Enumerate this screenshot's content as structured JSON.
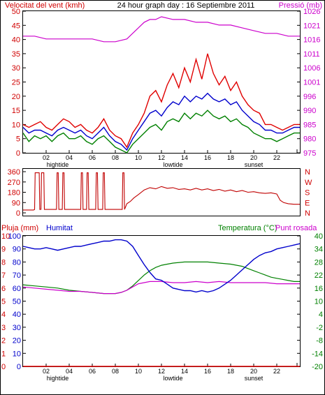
{
  "header": {
    "wind_label": "Velocitat del vent (kmh)",
    "center_title": "24 hour graph day : 16 Septiembre 2011",
    "pressure_label": "Pressió (mb)"
  },
  "colors": {
    "wind_gust": "#e00000",
    "wind_avg": "#0000cc",
    "wind_low": "#008000",
    "pressure": "#cc00cc",
    "direction": "#c00000",
    "humidity": "#0000cc",
    "temperature": "#008000",
    "dewpoint": "#cc00cc",
    "rain": "#e00000",
    "axis_red": "#d00000",
    "axis_magenta": "#cc00cc",
    "axis_green": "#008000"
  },
  "x_axis": {
    "hour_labels": [
      "02",
      "04",
      "06",
      "08",
      "10",
      "12",
      "14",
      "16",
      "18",
      "20",
      "22"
    ],
    "events": [
      {
        "x": 3.0,
        "label": "hightide"
      },
      {
        "x": 13.0,
        "label": "lowtide"
      },
      {
        "x": 20.0,
        "label": "sunset"
      }
    ]
  },
  "chart_data": [
    {
      "type": "line",
      "x_unit": "hour",
      "y_left": {
        "label": "Velocitat del vent (kmh)",
        "ticks": [
          "0",
          "5",
          "10",
          "15",
          "20",
          "25",
          "30",
          "35",
          "40",
          "45",
          "50"
        ],
        "lim": [
          0,
          50
        ]
      },
      "y_right": {
        "label": "Pressió (mb)",
        "ticks": [
          "975",
          "980",
          "985",
          "990",
          "996",
          "1001",
          "1006",
          "1011",
          "1016",
          "1021",
          "1026"
        ],
        "lim": [
          975,
          1026
        ]
      },
      "series": [
        {
          "name": "gust",
          "x": [
            0,
            0.5,
            1,
            1.5,
            2,
            2.5,
            3,
            3.5,
            4,
            4.5,
            5,
            5.5,
            6,
            6.5,
            7,
            7.5,
            8,
            8.5,
            9,
            9.5,
            10,
            10.5,
            11,
            11.5,
            12,
            12.5,
            13,
            13.5,
            14,
            14.5,
            15,
            15.5,
            16,
            16.5,
            17,
            17.5,
            18,
            18.5,
            19,
            19.5,
            20,
            20.5,
            21,
            21.5,
            22,
            22.5,
            23,
            23.5,
            24
          ],
          "y": [
            10,
            9,
            10,
            11,
            9,
            8,
            10,
            12,
            11,
            9,
            10,
            8,
            7,
            9,
            12,
            8,
            6,
            5,
            2,
            7,
            10,
            14,
            20,
            22,
            18,
            24,
            28,
            23,
            30,
            25,
            33,
            26,
            35,
            28,
            24,
            27,
            22,
            25,
            20,
            17,
            15,
            14,
            10,
            10,
            9,
            8,
            9,
            10,
            10
          ]
        },
        {
          "name": "average",
          "x": [
            0,
            0.5,
            1,
            1.5,
            2,
            2.5,
            3,
            3.5,
            4,
            4.5,
            5,
            5.5,
            6,
            6.5,
            7,
            7.5,
            8,
            8.5,
            9,
            9.5,
            10,
            10.5,
            11,
            11.5,
            12,
            12.5,
            13,
            13.5,
            14,
            14.5,
            15,
            15.5,
            16,
            16.5,
            17,
            17.5,
            18,
            18.5,
            19,
            19.5,
            20,
            20.5,
            21,
            21.5,
            22,
            22.5,
            23,
            23.5,
            24
          ],
          "y": [
            9,
            7,
            8,
            8,
            7,
            6,
            8,
            9,
            8,
            7,
            8,
            6,
            5,
            7,
            9,
            6,
            4,
            3,
            1,
            5,
            8,
            11,
            14,
            15,
            13,
            16,
            18,
            17,
            20,
            18,
            20,
            19,
            21,
            19,
            18,
            19,
            17,
            18,
            15,
            13,
            11,
            10,
            8,
            8,
            7,
            7,
            8,
            9,
            9
          ]
        },
        {
          "name": "low",
          "x": [
            0,
            0.5,
            1,
            1.5,
            2,
            2.5,
            3,
            3.5,
            4,
            4.5,
            5,
            5.5,
            6,
            6.5,
            7,
            7.5,
            8,
            8.5,
            9,
            9.5,
            10,
            10.5,
            11,
            11.5,
            12,
            12.5,
            13,
            13.5,
            14,
            14.5,
            15,
            15.5,
            16,
            16.5,
            17,
            17.5,
            18,
            18.5,
            19,
            19.5,
            20,
            20.5,
            21,
            21.5,
            22,
            22.5,
            23,
            23.5,
            24
          ],
          "y": [
            7,
            4,
            6,
            5,
            6,
            4,
            6,
            7,
            5,
            5,
            6,
            4,
            3,
            5,
            6,
            4,
            2,
            1,
            0,
            3,
            5,
            7,
            9,
            10,
            8,
            11,
            12,
            11,
            14,
            12,
            14,
            13,
            15,
            13,
            12,
            13,
            11,
            12,
            10,
            9,
            7,
            6,
            5,
            5,
            4,
            5,
            6,
            7,
            7
          ]
        },
        {
          "name": "pressure",
          "x": [
            0,
            1,
            2,
            3,
            4,
            5,
            6,
            7,
            8,
            9,
            9.5,
            10,
            10.5,
            11,
            11.5,
            12,
            13,
            14,
            15,
            16,
            17,
            18,
            19,
            20,
            21,
            22,
            23,
            24
          ],
          "y": [
            1017,
            1017,
            1016,
            1016,
            1016,
            1016,
            1016,
            1015,
            1015,
            1016,
            1018,
            1020,
            1022,
            1023,
            1023,
            1024,
            1023,
            1023,
            1022,
            1022,
            1021,
            1021,
            1020,
            1019,
            1018,
            1018,
            1017,
            1017
          ]
        }
      ]
    },
    {
      "type": "line",
      "x_unit": "hour",
      "y_left": {
        "ticks": [
          "360",
          "270",
          "180",
          "90",
          "0"
        ],
        "lim": [
          0,
          360
        ]
      },
      "y_right": {
        "ticks": [
          "N",
          "W",
          "S",
          "E",
          "N"
        ]
      },
      "series": [
        {
          "name": "direction",
          "x": [
            0,
            0.9,
            1,
            1.05,
            1.4,
            1.45,
            1.55,
            1.6,
            1.8,
            1.85,
            2.9,
            2.95,
            3.05,
            3.1,
            3.4,
            3.45,
            3.55,
            3.6,
            5.0,
            5.05,
            5.15,
            5.2,
            5.5,
            5.55,
            5.65,
            5.7,
            6.3,
            6.35,
            6.45,
            6.5,
            6.9,
            6.95,
            7.05,
            7.1,
            8.6,
            8.65,
            8.75,
            8.8,
            9.0,
            9.3,
            9.6,
            10,
            10.5,
            11,
            11.5,
            12,
            12.5,
            13,
            13.5,
            14,
            14.5,
            15,
            15.5,
            16,
            16.5,
            17,
            17.5,
            18,
            18.5,
            19,
            19.5,
            20,
            20.5,
            21,
            21.5,
            22,
            22.3,
            22.6,
            23,
            23.5,
            24
          ],
          "y": [
            25,
            25,
            30,
            350,
            350,
            30,
            30,
            350,
            350,
            30,
            30,
            350,
            350,
            30,
            30,
            350,
            350,
            30,
            30,
            350,
            350,
            30,
            30,
            350,
            350,
            30,
            30,
            350,
            350,
            30,
            30,
            350,
            350,
            30,
            30,
            350,
            350,
            30,
            80,
            100,
            130,
            160,
            200,
            220,
            210,
            230,
            215,
            220,
            205,
            210,
            200,
            215,
            200,
            210,
            195,
            205,
            190,
            200,
            185,
            195,
            180,
            185,
            175,
            170,
            175,
            165,
            110,
            90,
            80,
            75,
            75
          ]
        }
      ]
    },
    {
      "type": "line",
      "x_unit": "hour",
      "y_left_rain": {
        "label": "Pluja (mm)",
        "ticks": [
          "0",
          "1",
          "2",
          "3",
          "4",
          "5",
          "6",
          "7",
          "8",
          "9",
          "10"
        ],
        "lim": [
          0,
          10
        ]
      },
      "y_left_humidity": {
        "label": "Humitat",
        "ticks": [
          "0",
          "10",
          "20",
          "30",
          "40",
          "50",
          "60",
          "70",
          "80",
          "90",
          "100"
        ],
        "lim": [
          0,
          100
        ]
      },
      "y_right": {
        "label": "Temperatura (°C)",
        "ticks": [
          "-20",
          "-14",
          "-8",
          "-2",
          "4",
          "10",
          "16",
          "22",
          "28",
          "34",
          "40"
        ],
        "lim": [
          -20,
          40
        ]
      },
      "dewpoint_label": "Punt rosada",
      "series": [
        {
          "name": "humidity",
          "x": [
            0,
            0.5,
            1,
            1.5,
            2,
            2.5,
            3,
            3.5,
            4,
            4.5,
            5,
            5.5,
            6,
            6.5,
            7,
            7.5,
            8,
            8.5,
            9,
            9.5,
            10,
            10.5,
            11,
            11.5,
            12,
            12.5,
            13,
            13.5,
            14,
            14.5,
            15,
            15.5,
            16,
            16.5,
            17,
            17.5,
            18,
            18.5,
            19,
            19.5,
            20,
            20.5,
            21,
            21.5,
            22,
            22.5,
            23,
            23.5,
            24
          ],
          "y": [
            92,
            91,
            90,
            90,
            91,
            90,
            89,
            90,
            91,
            92,
            92,
            93,
            94,
            95,
            96,
            96,
            97,
            97,
            96,
            92,
            85,
            78,
            72,
            67,
            66,
            63,
            60,
            59,
            58,
            58,
            57,
            58,
            57,
            58,
            60,
            63,
            66,
            70,
            74,
            78,
            82,
            85,
            87,
            88,
            90,
            91,
            92,
            93,
            94
          ]
        },
        {
          "name": "temperature",
          "x": [
            0,
            1,
            2,
            3,
            4,
            5,
            6,
            7,
            8,
            8.5,
            9,
            9.5,
            10,
            10.5,
            11,
            11.5,
            12,
            12.5,
            13,
            14,
            15,
            16,
            17,
            18,
            19,
            19.5,
            20,
            20.5,
            21,
            21.5,
            22,
            22.5,
            23,
            23.5,
            24
          ],
          "y": [
            17.5,
            17,
            16.5,
            16,
            15,
            14.5,
            14,
            13.5,
            13.5,
            14,
            15,
            17,
            19.5,
            22,
            24,
            25.5,
            26.5,
            27,
            27.5,
            28,
            28,
            28,
            27.5,
            27,
            26,
            25,
            24,
            23,
            22,
            21,
            20.5,
            20,
            19.5,
            19,
            19
          ]
        },
        {
          "name": "dewpoint",
          "x": [
            0,
            1,
            2,
            3,
            4,
            5,
            6,
            7,
            8,
            8.5,
            9,
            9.5,
            10,
            11,
            12,
            13,
            14,
            15,
            16,
            17,
            18,
            19,
            20,
            21,
            22,
            23,
            24
          ],
          "y": [
            16.5,
            16,
            15.5,
            15,
            14.5,
            14.5,
            14,
            13.5,
            13.5,
            14,
            15,
            16.5,
            18,
            19,
            19,
            18.5,
            18.5,
            19,
            18.5,
            19,
            18.5,
            18.5,
            18.5,
            18.5,
            18,
            18,
            18
          ]
        },
        {
          "name": "rain",
          "x": [
            0,
            24
          ],
          "y": [
            0,
            0
          ]
        }
      ]
    }
  ],
  "panel3_labels": {
    "rain": "Pluja (mm)",
    "humidity": "Humitat",
    "temperature": "Temperatura (°C)",
    "dewpoint": "Punt rosada"
  }
}
